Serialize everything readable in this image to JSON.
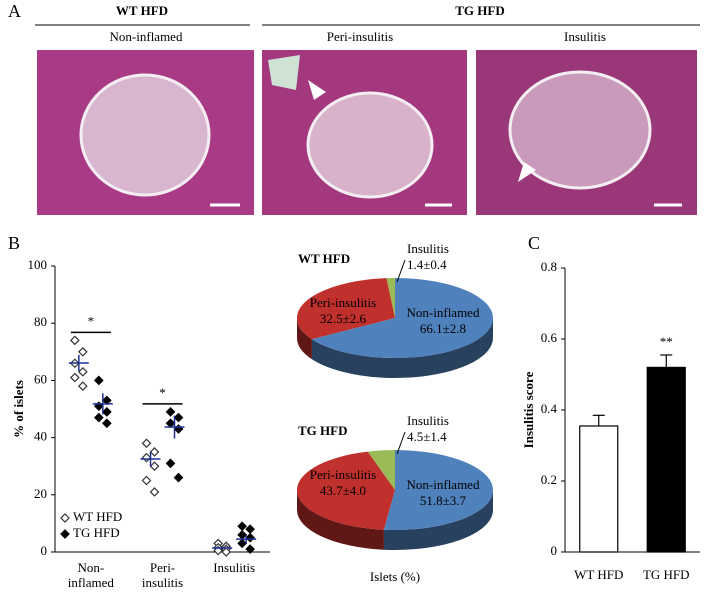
{
  "figure_a": {
    "panel": "A",
    "groups": [
      {
        "title": "WT HFD",
        "panels": [
          "Non-inflamed"
        ]
      },
      {
        "title": "TG HFD",
        "panels": [
          "Peri-insulitis",
          "Insulitis"
        ]
      }
    ]
  },
  "chart_data": [
    {
      "type": "dotplot",
      "panel": "B",
      "categories": [
        "Non-\ninflamed",
        "Peri-\ninsulitis",
        "Insulitis"
      ],
      "ylabel": "% of islets",
      "ylim": [
        0,
        100
      ],
      "yticks": [
        0,
        20,
        40,
        60,
        80,
        100
      ],
      "legend": "lower left",
      "mean_color": "#1f2f8f",
      "series": [
        {
          "name": "WT HFD",
          "color": "#333333",
          "marker": "open",
          "values": [
            [
              74,
              70,
              66,
              63,
              61,
              58
            ],
            [
              38,
              35,
              33,
              30,
              25,
              21
            ],
            [
              3,
              2,
              1.5,
              1,
              0.5,
              0
            ]
          ],
          "means": [
            66.1,
            32.5,
            1.4
          ],
          "errors": [
            2.8,
            2.6,
            0.4
          ]
        },
        {
          "name": "TG HFD",
          "color": "#000000",
          "marker": "filled",
          "values": [
            [
              60,
              53,
              51,
              49,
              47,
              45
            ],
            [
              49,
              47,
              45,
              43,
              31,
              26
            ],
            [
              9,
              8,
              6,
              5,
              3,
              1
            ]
          ],
          "means": [
            51.8,
            43.7,
            4.5
          ],
          "errors": [
            3.7,
            4.0,
            1.4
          ]
        }
      ],
      "annotations": [
        {
          "text": "*",
          "category": 0
        },
        {
          "text": "*",
          "category": 1
        }
      ]
    },
    {
      "type": "pie",
      "title": "WT HFD",
      "categories": [
        "Non-inflamed",
        "Peri-insulitis",
        "Insulitis"
      ],
      "values": [
        66.1,
        32.5,
        1.4
      ],
      "value_labels": [
        "66.1±2.8",
        "32.5±2.6",
        "1.4±0.4"
      ],
      "colors": [
        "#4f81bd",
        "#c0302c",
        "#9bbb59"
      ]
    },
    {
      "type": "pie",
      "title": "TG HFD",
      "categories": [
        "Non-inflamed",
        "Peri-insulitis",
        "Insulitis"
      ],
      "values": [
        51.8,
        43.7,
        4.5
      ],
      "value_labels": [
        "51.8±3.7",
        "43.7±4.0",
        "4.5±1.4"
      ],
      "colors": [
        "#4f81bd",
        "#c0302c",
        "#9bbb59"
      ],
      "xlabel": "Islets (%)"
    },
    {
      "type": "bar",
      "panel": "C",
      "categories": [
        "WT HFD",
        "TG HFD"
      ],
      "values": [
        0.355,
        0.52
      ],
      "errors": [
        0.03,
        0.035
      ],
      "colors": [
        "#ffffff",
        "#000000"
      ],
      "ylabel": "Insulitis score",
      "ylim": [
        0,
        0.8
      ],
      "yticks": [
        0,
        0.2,
        0.4,
        0.6,
        0.8
      ],
      "annotations": [
        {
          "text": "**",
          "category": 1
        }
      ]
    }
  ]
}
